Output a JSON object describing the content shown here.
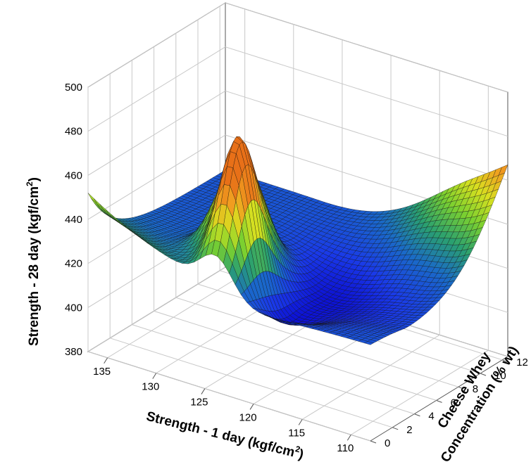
{
  "chart_data": {
    "type": "surface",
    "x_axis": {
      "label_main": "Strength - 1 day (kgf/cm",
      "label_sup": "2",
      "label_end": ")",
      "ticks": [
        "135",
        "130",
        "125",
        "120",
        "115",
        "110"
      ],
      "range": [
        108,
        137
      ]
    },
    "y_axis": {
      "label_line1": "Cheese Whey",
      "label_line2": "Concentration (% wt)",
      "ticks": [
        "0",
        "2",
        "4",
        "6",
        "8",
        "10",
        "12"
      ],
      "range": [
        0,
        12.5
      ]
    },
    "z_axis": {
      "label_main": "Strength - 28 day (kgf/cm",
      "label_sup": "2",
      "label_end": ")",
      "ticks": [
        "380",
        "400",
        "420",
        "440",
        "460",
        "480",
        "500"
      ],
      "range": [
        380,
        500
      ]
    },
    "grid": true,
    "colormap": [
      "#0a0ad0",
      "#1a3ae8",
      "#1a6ac8",
      "#2aa070",
      "#7ad030",
      "#d8e020",
      "#f0a020",
      "#e87018"
    ],
    "surface_features": [
      {
        "description": "left peak",
        "x1day": 126,
        "cw": 4,
        "z": 468
      },
      {
        "description": "central peak",
        "x1day": 124,
        "cw": 2,
        "z": 478
      },
      {
        "description": "ridge toward corner",
        "x1day": 110,
        "cw": 12,
        "z": 467
      },
      {
        "description": "left edge high",
        "x1day": 137,
        "cw": 0,
        "z": 452
      },
      {
        "description": "valley minimum",
        "x1day": 118,
        "cw": 6,
        "z": 408
      }
    ]
  }
}
